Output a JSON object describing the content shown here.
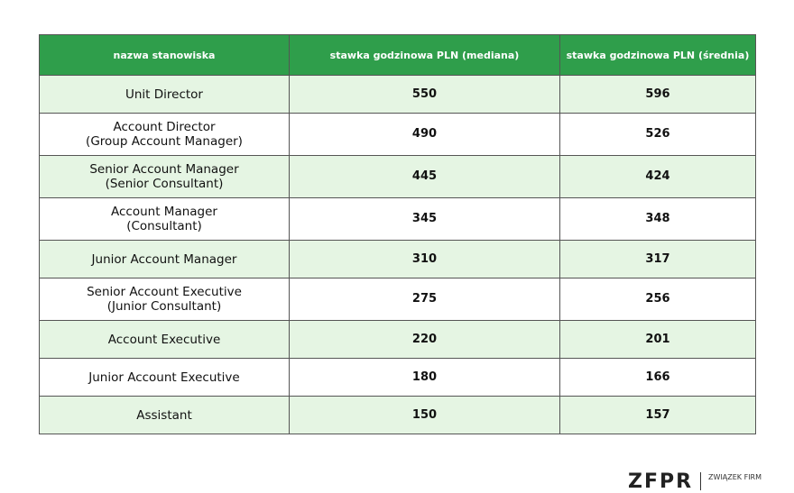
{
  "table": {
    "header": [
      "nazwa stanowiska",
      "stawka godzinowa PLN (mediana)",
      "stawka godzinowa PLN (średnia)"
    ],
    "rows": [
      [
        "Unit Director",
        550,
        596
      ],
      [
        "Account Director\n(Group Account Manager)",
        490,
        526
      ],
      [
        "Senior Account Manager\n(Senior Consultant)",
        445,
        424
      ],
      [
        "Account Manager\n(Consultant)",
        345,
        348
      ],
      [
        "Junior Account Manager",
        310,
        317
      ],
      [
        "Senior Account Executive\n(Junior Consultant)",
        275,
        256
      ],
      [
        "Account Executive",
        220,
        201
      ],
      [
        "Junior Account Executive",
        180,
        166
      ],
      [
        "Assistant",
        150,
        157
      ]
    ]
  },
  "logo": {
    "mark": "ZFPR",
    "text": "ZWIĄZEK FIRM"
  }
}
